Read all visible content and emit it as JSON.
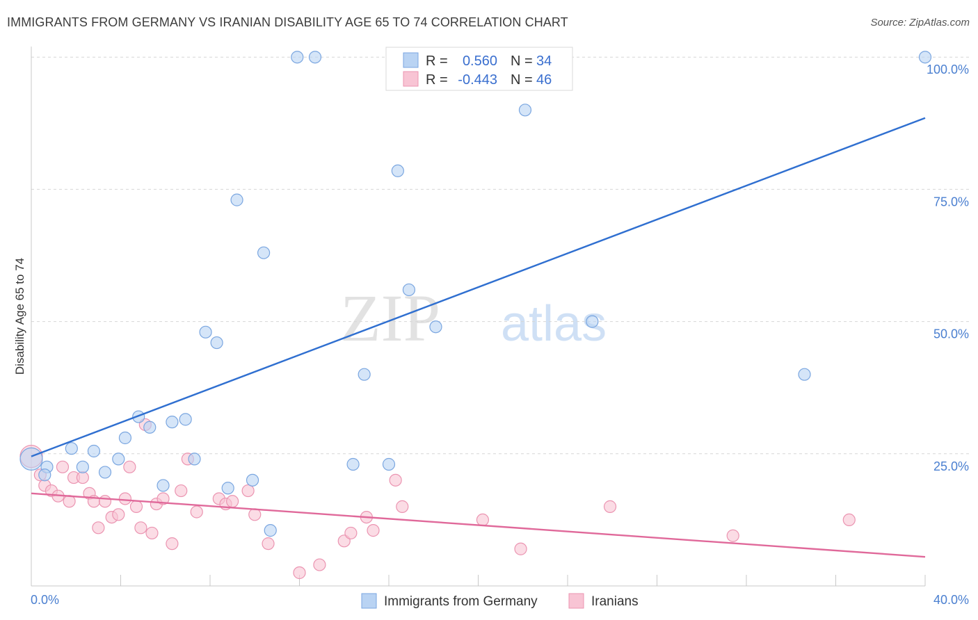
{
  "header": {
    "title": "IMMIGRANTS FROM GERMANY VS IRANIAN DISABILITY AGE 65 TO 74 CORRELATION CHART",
    "source": "Source: ZipAtlas.com"
  },
  "watermark": {
    "zip": "ZIP",
    "atlas": "atlas"
  },
  "colors": {
    "blue_fill": "#b9d3f3",
    "blue_stroke": "#7aa6e0",
    "blue_line": "#2f6fd0",
    "pink_fill": "#f8c4d4",
    "pink_stroke": "#eb94b1",
    "pink_line": "#e0699a",
    "grid": "#d6d6d6",
    "tick_text": "#4a7fd0"
  },
  "chart_data": {
    "type": "scatter",
    "title": "IMMIGRANTS FROM GERMANY VS IRANIAN DISABILITY AGE 65 TO 74 CORRELATION CHART",
    "xlabel": "",
    "ylabel": "Disability Age 65 to 74",
    "xlim": [
      0,
      40
    ],
    "ylim": [
      0,
      102
    ],
    "x_tick_labels": [
      "0.0%",
      "40.0%"
    ],
    "y_ticks": [
      25,
      50,
      75,
      100
    ],
    "y_tick_labels": [
      "25.0%",
      "50.0%",
      "75.0%",
      "100.0%"
    ],
    "legend": {
      "entries": [
        {
          "r_label": "R =",
          "r_value": "0.560",
          "n_label": "N =",
          "n_value": "34"
        },
        {
          "r_label": "R =",
          "r_value": "-0.443",
          "n_label": "N =",
          "n_value": "46"
        }
      ]
    },
    "series": [
      {
        "name": "Immigrants from Germany",
        "color": "blue",
        "trend": {
          "x": [
            0,
            40
          ],
          "y": [
            24.5,
            88.5
          ]
        },
        "points": [
          [
            0.0,
            24.0,
            "big"
          ],
          [
            0.7,
            22.5
          ],
          [
            0.6,
            21.0
          ],
          [
            1.8,
            26.0
          ],
          [
            2.3,
            22.5
          ],
          [
            2.8,
            25.5
          ],
          [
            3.3,
            21.5
          ],
          [
            3.9,
            24.0
          ],
          [
            4.2,
            28.0
          ],
          [
            4.8,
            32.0
          ],
          [
            5.3,
            30.0
          ],
          [
            5.9,
            19.0
          ],
          [
            6.3,
            31.0
          ],
          [
            6.9,
            31.5
          ],
          [
            7.3,
            24.0
          ],
          [
            7.8,
            48.0
          ],
          [
            8.3,
            46.0
          ],
          [
            8.8,
            18.5
          ],
          [
            9.2,
            73.0
          ],
          [
            9.9,
            20.0
          ],
          [
            10.4,
            63.0
          ],
          [
            10.7,
            10.5
          ],
          [
            11.9,
            100.0
          ],
          [
            12.7,
            100.0
          ],
          [
            14.4,
            23.0
          ],
          [
            14.9,
            40.0
          ],
          [
            16.0,
            23.0
          ],
          [
            16.4,
            78.5
          ],
          [
            16.9,
            56.0
          ],
          [
            18.1,
            49.0
          ],
          [
            22.1,
            90.0
          ],
          [
            25.1,
            50.0
          ],
          [
            34.6,
            40.0
          ],
          [
            40.0,
            100.0
          ]
        ]
      },
      {
        "name": "Iranians",
        "color": "pink",
        "trend": {
          "x": [
            0,
            40
          ],
          "y": [
            17.5,
            5.5
          ]
        },
        "points": [
          [
            0.0,
            24.5,
            "big"
          ],
          [
            0.4,
            21.0
          ],
          [
            0.6,
            19.0
          ],
          [
            0.9,
            18.0
          ],
          [
            1.2,
            17.0
          ],
          [
            1.4,
            22.5
          ],
          [
            1.7,
            16.0
          ],
          [
            1.9,
            20.5
          ],
          [
            2.3,
            20.5
          ],
          [
            2.6,
            17.5
          ],
          [
            2.8,
            16.0
          ],
          [
            3.0,
            11.0
          ],
          [
            3.3,
            16.0
          ],
          [
            3.6,
            13.0
          ],
          [
            3.9,
            13.5
          ],
          [
            4.2,
            16.5
          ],
          [
            4.4,
            22.5
          ],
          [
            4.7,
            15.0
          ],
          [
            4.9,
            11.0
          ],
          [
            5.1,
            30.5
          ],
          [
            5.4,
            10.0
          ],
          [
            5.6,
            15.5
          ],
          [
            5.9,
            16.5
          ],
          [
            6.3,
            8.0
          ],
          [
            6.7,
            18.0
          ],
          [
            7.0,
            24.0
          ],
          [
            7.4,
            14.0
          ],
          [
            8.4,
            16.5
          ],
          [
            8.7,
            15.5
          ],
          [
            9.0,
            16.0
          ],
          [
            9.7,
            18.0
          ],
          [
            10.0,
            13.5
          ],
          [
            10.6,
            8.0
          ],
          [
            12.0,
            2.5
          ],
          [
            12.9,
            4.0
          ],
          [
            14.0,
            8.5
          ],
          [
            14.3,
            10.0
          ],
          [
            15.0,
            13.0
          ],
          [
            15.3,
            10.5
          ],
          [
            16.3,
            20.0
          ],
          [
            16.6,
            15.0
          ],
          [
            20.2,
            12.5
          ],
          [
            21.9,
            7.0
          ],
          [
            25.9,
            15.0
          ],
          [
            31.4,
            9.5
          ],
          [
            36.6,
            12.5
          ]
        ]
      }
    ]
  }
}
